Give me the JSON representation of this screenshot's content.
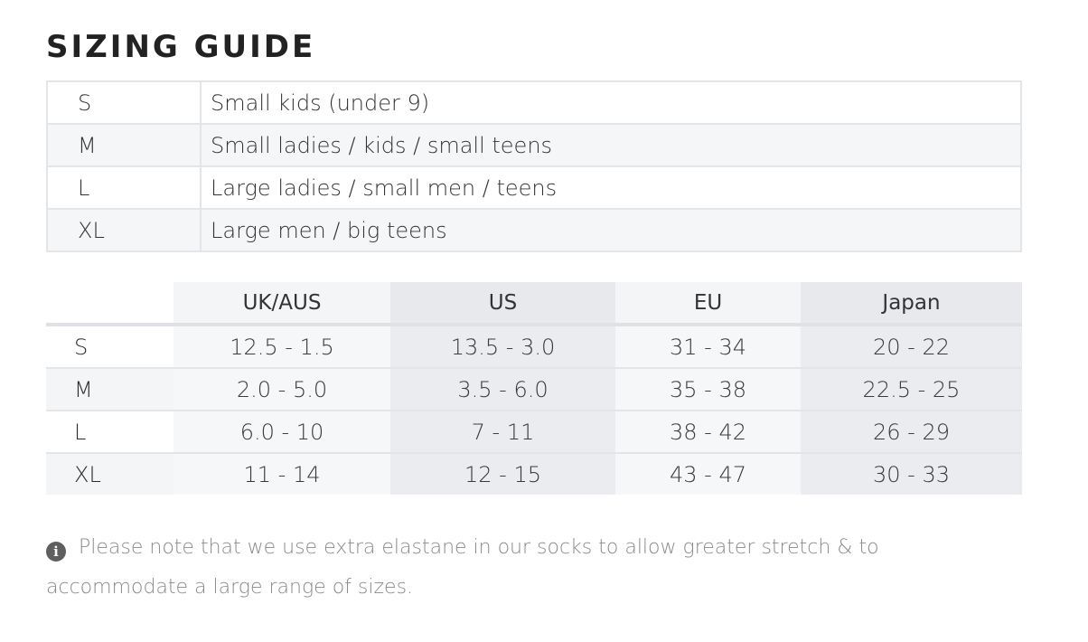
{
  "title": "SIZING GUIDE",
  "size_descriptions": [
    {
      "size": "S",
      "text": "Small kids (under 9)"
    },
    {
      "size": "M",
      "text": "Small ladies / kids / small teens"
    },
    {
      "size": "L",
      "text": "Large ladies / small men / teens"
    },
    {
      "size": "XL",
      "text": "Large men / big teens"
    }
  ],
  "conversion": {
    "headers": [
      "",
      "UK/AUS",
      "US",
      "EU",
      "Japan"
    ],
    "rows": [
      [
        "S",
        "12.5 - 1.5",
        "13.5 - 3.0",
        "31 - 34",
        "20 - 22"
      ],
      [
        "M",
        "2.0 - 5.0",
        "3.5 - 6.0",
        "35 - 38",
        "22.5 - 25"
      ],
      [
        "L",
        "6.0 - 10",
        "7 - 11",
        "38 - 42",
        "26 - 29"
      ],
      [
        "XL",
        "11 - 14",
        "12 - 15",
        "43 - 47",
        "30 - 33"
      ]
    ]
  },
  "note": {
    "icon": "info-icon",
    "text": "Please note that we use extra elastane in our socks to allow greater stretch & to accommodate a large range of sizes."
  }
}
